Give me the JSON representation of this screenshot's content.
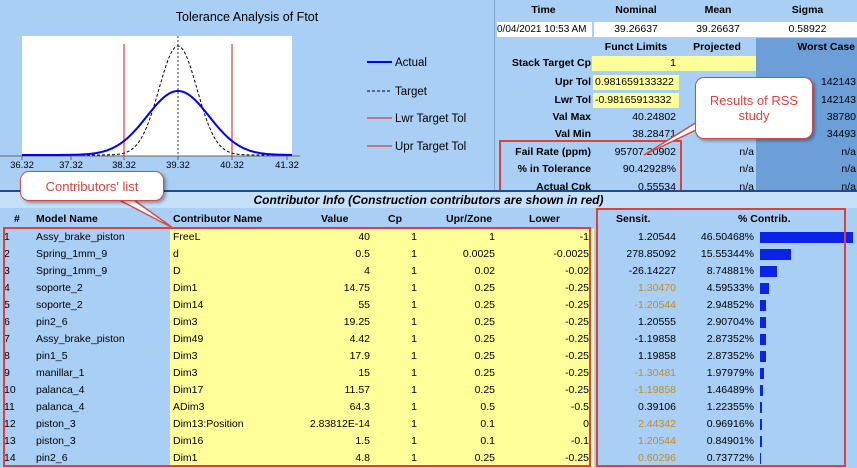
{
  "chart": {
    "title": "Tolerance Analysis of Ftot",
    "x_ticks": [
      "36.32",
      "37.32",
      "38.32",
      "39.32",
      "40.32",
      "41.32"
    ],
    "legend": [
      "Actual",
      "Target",
      "Lwr Target Tol",
      "Upr Target Tol"
    ],
    "colors": {
      "actual": "#0000ff",
      "target": "#000000",
      "tol": "#e23b3b"
    }
  },
  "stats": {
    "headers": {
      "time": "Time",
      "nominal": "Nominal",
      "mean": "Mean",
      "sigma": "Sigma"
    },
    "values": {
      "time": "0/04/2021 10:53 AM",
      "nominal": "39.26637",
      "mean": "39.26637",
      "sigma": "0.58922"
    },
    "col_headers": {
      "funct": "Funct Limits",
      "projected": "Projected",
      "worst": "Worst Case"
    },
    "rows": [
      {
        "label": "Stack Target Cp",
        "funct": "1",
        "projected": "",
        "worst": ""
      },
      {
        "label": "Upr Tol",
        "funct": "0.981659133322",
        "projected": "",
        "worst": "142143"
      },
      {
        "label": "Lwr Tol",
        "funct": "-0.98165913332",
        "projected": "",
        "worst": "142143"
      },
      {
        "label": "Val Max",
        "funct": "40.24802",
        "projected": "",
        "worst": "38780"
      },
      {
        "label": "Val Min",
        "funct": "38.28471",
        "projected": "",
        "worst": "34493"
      },
      {
        "label": "Fail Rate (ppm)",
        "funct": "95707.20902",
        "projected": "n/a",
        "worst": "n/a"
      },
      {
        "label": "% in Tolerance",
        "funct": "90.42928%",
        "projected": "n/a",
        "worst": "n/a"
      },
      {
        "label": "Actual Cpk",
        "funct": "0.55534",
        "projected": "n/a",
        "worst": "n/a"
      }
    ]
  },
  "callouts": {
    "rss": "Results of RSS study",
    "contrib": "Contributors' list"
  },
  "table": {
    "title": "Contributor Info (Construction contributors are shown in red)",
    "headers": {
      "num": "#",
      "model": "Model Name",
      "contrib": "Contributor Name",
      "value": "Value",
      "cp": "Cp",
      "upr": "Upr/Zone",
      "lower": "Lower",
      "sens": "Sensit.",
      "pct": "% Contrib."
    },
    "rows": [
      {
        "n": "1",
        "model": "Assy_brake_piston",
        "contrib": "FreeL",
        "value": "40",
        "cp": "1",
        "upr": "1",
        "lower": "-1",
        "sens": "1.20544",
        "pct": "46.50468%",
        "frac": 0.465,
        "orange": false
      },
      {
        "n": "2",
        "model": "Spring_1mm_9",
        "contrib": "d",
        "value": "0.5",
        "cp": "1",
        "upr": "0.0025",
        "lower": "-0.0025",
        "sens": "278.85092",
        "pct": "15.55344%",
        "frac": 0.1555,
        "orange": false
      },
      {
        "n": "3",
        "model": "Spring_1mm_9",
        "contrib": "D",
        "value": "4",
        "cp": "1",
        "upr": "0.02",
        "lower": "-0.02",
        "sens": "-26.14227",
        "pct": "8.74881%",
        "frac": 0.0875,
        "orange": false
      },
      {
        "n": "4",
        "model": "soporte_2",
        "contrib": "Dim1",
        "value": "14.75",
        "cp": "1",
        "upr": "0.25",
        "lower": "-0.25",
        "sens": "1.30470",
        "pct": "4.59533%",
        "frac": 0.046,
        "orange": true
      },
      {
        "n": "5",
        "model": "soporte_2",
        "contrib": "Dim14",
        "value": "55",
        "cp": "1",
        "upr": "0.25",
        "lower": "-0.25",
        "sens": "-1.20544",
        "pct": "2.94852%",
        "frac": 0.0295,
        "orange": true
      },
      {
        "n": "6",
        "model": "pin2_6",
        "contrib": "Dim3",
        "value": "19.25",
        "cp": "1",
        "upr": "0.25",
        "lower": "-0.25",
        "sens": "1.20555",
        "pct": "2.90704%",
        "frac": 0.0291,
        "orange": false
      },
      {
        "n": "7",
        "model": "Assy_brake_piston",
        "contrib": "Dim49",
        "value": "4.42",
        "cp": "1",
        "upr": "0.25",
        "lower": "-0.25",
        "sens": "-1.19858",
        "pct": "2.87352%",
        "frac": 0.0287,
        "orange": false
      },
      {
        "n": "8",
        "model": "pin1_5",
        "contrib": "Dim3",
        "value": "17.9",
        "cp": "1",
        "upr": "0.25",
        "lower": "-0.25",
        "sens": "1.19858",
        "pct": "2.87352%",
        "frac": 0.0287,
        "orange": false
      },
      {
        "n": "9",
        "model": "manillar_1",
        "contrib": "Dim3",
        "value": "15",
        "cp": "1",
        "upr": "0.25",
        "lower": "-0.25",
        "sens": "-1.30481",
        "pct": "1.97979%",
        "frac": 0.0198,
        "orange": true
      },
      {
        "n": "10",
        "model": "palanca_4",
        "contrib": "Dim17",
        "value": "11.57",
        "cp": "1",
        "upr": "0.25",
        "lower": "-0.25",
        "sens": "-1.19858",
        "pct": "1.46489%",
        "frac": 0.0146,
        "orange": true
      },
      {
        "n": "11",
        "model": "palanca_4",
        "contrib": "ADim3",
        "value": "64.3",
        "cp": "1",
        "upr": "0.5",
        "lower": "-0.5",
        "sens": "0.39106",
        "pct": "1.22355%",
        "frac": 0.0122,
        "orange": false
      },
      {
        "n": "12",
        "model": "piston_3",
        "contrib": "Dim13:Position",
        "value": "2.83812E-14",
        "cp": "1",
        "upr": "0.1",
        "lower": "0",
        "sens": "2.44342",
        "pct": "0.96916%",
        "frac": 0.0097,
        "orange": true
      },
      {
        "n": "13",
        "model": "piston_3",
        "contrib": "Dim16",
        "value": "1.5",
        "cp": "1",
        "upr": "0.1",
        "lower": "-0.1",
        "sens": "1.20544",
        "pct": "0.84901%",
        "frac": 0.0085,
        "orange": true
      },
      {
        "n": "14",
        "model": "pin2_6",
        "contrib": "Dim1",
        "value": "4.8",
        "cp": "1",
        "upr": "0.25",
        "lower": "-0.25",
        "sens": "0.60296",
        "pct": "0.73772%",
        "frac": 0.0074,
        "orange": true
      }
    ]
  }
}
